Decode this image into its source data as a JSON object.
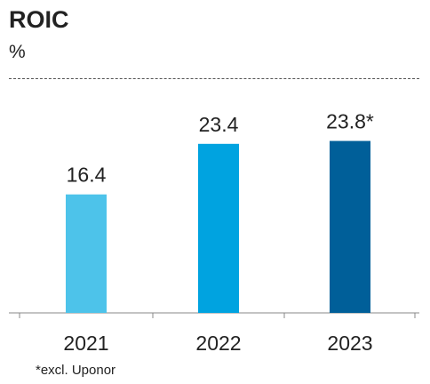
{
  "title": "ROIC",
  "unit": "%",
  "footnote": "*excl. Uponor",
  "chart_data": {
    "type": "bar",
    "categories": [
      "2021",
      "2022",
      "2023"
    ],
    "values": [
      16.4,
      23.4,
      23.8
    ],
    "data_labels": [
      "16.4",
      "23.4",
      "23.8*"
    ],
    "colors": [
      "#4dc3ea",
      "#00a3e0",
      "#005f99"
    ],
    "ylim": [
      0,
      26.7
    ],
    "grid": false,
    "legend": "none"
  }
}
